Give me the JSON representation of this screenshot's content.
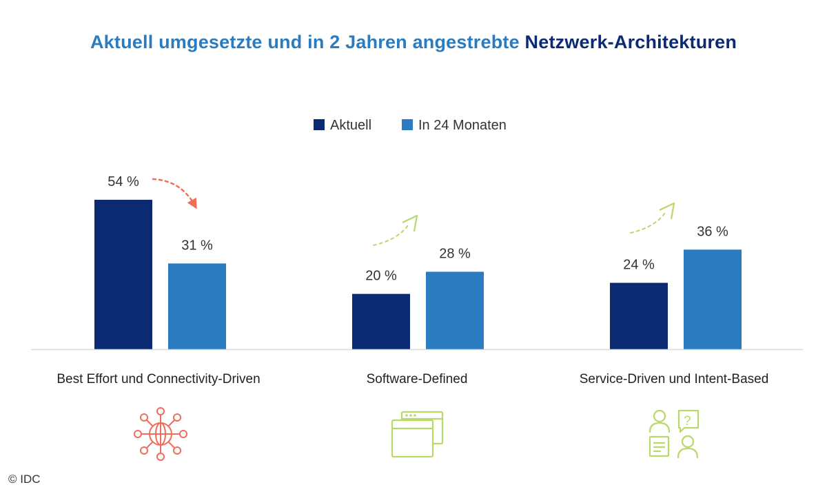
{
  "title": {
    "part1": "Aktuell umgesetzte und in 2 Jahren angestrebte ",
    "part2": "Netzwerk-Architekturen"
  },
  "credit": "© IDC",
  "chart_data": {
    "type": "bar",
    "title": "Aktuell umgesetzte und in 2 Jahren angestrebte Netzwerk-Architekturen",
    "categories": [
      "Best Effort und Connectivity-Driven",
      "Software-Defined",
      "Service-Driven und Intent-Based"
    ],
    "series": [
      {
        "name": "Aktuell",
        "values": [
          54,
          20,
          24
        ],
        "labels": [
          "54 %",
          "20 %",
          "24 %"
        ],
        "color": "#0b2a73"
      },
      {
        "name": "In 24 Monaten",
        "values": [
          31,
          28,
          36
        ],
        "labels": [
          "31 %",
          "28 %",
          "36 %"
        ],
        "color": "#2a7bc0"
      }
    ],
    "ylim": [
      0,
      54
    ],
    "grid": false,
    "legend": "top-center",
    "trends": [
      "down",
      "up",
      "up"
    ],
    "trend_colors": {
      "down": "#ee6e5a",
      "up": "#b9d86a"
    },
    "category_icons": [
      "network-globe-icon",
      "browser-windows-icon",
      "support-chat-icon"
    ],
    "icon_colors": [
      "#ee6e5a",
      "#b9d86a",
      "#b9d86a"
    ]
  }
}
